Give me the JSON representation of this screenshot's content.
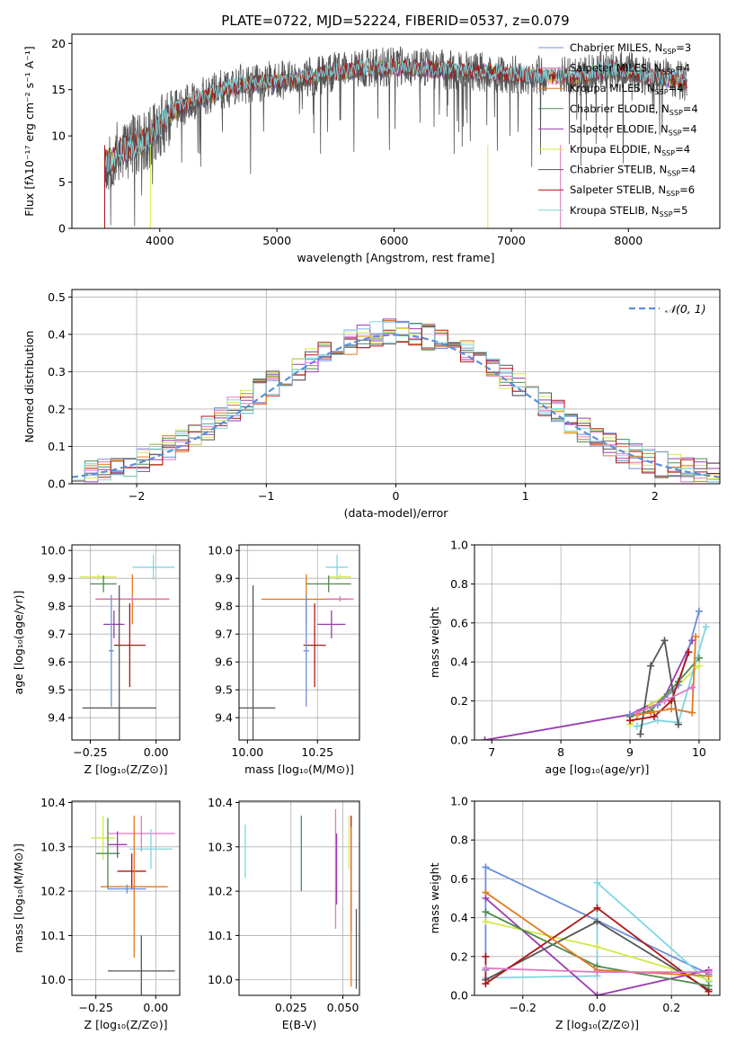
{
  "figure_title": "PLATE=0722, MJD=52224, FIBERID=0537, z=0.079",
  "colors": {
    "Chabrier MILES": "#6a8fdc",
    "Salpeter MILES": "#e377c2",
    "Kroupa MILES": "#e07a1f",
    "Chabrier ELODIE": "#4f8a4f",
    "Salpeter ELODIE": "#9a3bb0",
    "Kroupa ELODIE": "#d4e84a",
    "Chabrier STELIB": "#555555",
    "Salpeter STELIB": "#b01515",
    "Kroupa STELIB": "#7fd6e0",
    "normal_curve": "#5a8fd8",
    "grid": "#b0b0b0"
  },
  "chart_data": [
    {
      "id": "spectrum",
      "type": "line",
      "xlabel": "wavelength [Angstrom, rest frame]",
      "ylabel": "Flux [fλ10⁻¹⁷ erg cm⁻² s⁻¹ A⁻¹]",
      "xlim": [
        3250,
        8780
      ],
      "ylim": [
        0,
        21
      ],
      "xticks": [
        4000,
        5000,
        6000,
        7000,
        8000
      ],
      "yticks": [
        0,
        5,
        10,
        15,
        20
      ],
      "grid": false,
      "legend_position": "top-right",
      "legend": [
        {
          "name": "Chabrier MILES",
          "suffix": "=3"
        },
        {
          "name": "Salpeter MILES",
          "suffix": "=4"
        },
        {
          "name": "Kroupa MILES",
          "suffix": "=4"
        },
        {
          "name": "Chabrier ELODIE",
          "suffix": "=4"
        },
        {
          "name": "Salpeter ELODIE",
          "suffix": "=4"
        },
        {
          "name": "Kroupa ELODIE",
          "suffix": "=4"
        },
        {
          "name": "Chabrier STELIB",
          "suffix": "=4"
        },
        {
          "name": "Salpeter STELIB",
          "suffix": "=6"
        },
        {
          "name": "Kroupa STELIB",
          "suffix": "=5"
        }
      ],
      "legend_sub": "SSP",
      "legend_prefix": "N",
      "continuum_x": [
        3530,
        3700,
        3900,
        4000,
        4100,
        4300,
        4500,
        4700,
        4900,
        5100,
        5300,
        5500,
        5700,
        5900,
        6100,
        6300,
        6500,
        6700,
        6900,
        7100,
        7300,
        7400,
        7550,
        7700,
        7900,
        8100,
        8300,
        8500
      ],
      "continuum_y": [
        7.0,
        8.5,
        9.5,
        11.0,
        12.5,
        13.8,
        14.8,
        15.5,
        15.8,
        16.0,
        16.3,
        16.8,
        17.2,
        17.3,
        17.4,
        17.2,
        17.0,
        16.9,
        16.7,
        16.5,
        16.4,
        16.5,
        16.2,
        16.8,
        17.2,
        16.5,
        16.2,
        15.8
      ]
    },
    {
      "id": "residuals",
      "type": "histogram",
      "xlabel": "(data-model)/error",
      "ylabel": "Normed distribution",
      "xlim": [
        -2.5,
        2.5
      ],
      "ylim": [
        0,
        0.52
      ],
      "xticks": [
        -2,
        -1,
        0,
        1,
        2
      ],
      "yticks": [
        0.0,
        0.1,
        0.2,
        0.3,
        0.4,
        0.5
      ],
      "grid": true,
      "bin_width": 0.1,
      "legend": "𝒩(0, 1)",
      "legend_position": "top-right",
      "envelope_x": [
        -2.5,
        -2.2,
        -2.0,
        -1.8,
        -1.5,
        -1.2,
        -1.0,
        -0.8,
        -0.5,
        -0.2,
        0.0,
        0.2,
        0.5,
        0.8,
        1.0,
        1.2,
        1.5,
        1.8,
        2.0,
        2.2,
        2.5
      ],
      "envelope_y": [
        0.02,
        0.035,
        0.06,
        0.085,
        0.14,
        0.21,
        0.26,
        0.3,
        0.36,
        0.4,
        0.41,
        0.4,
        0.36,
        0.3,
        0.25,
        0.2,
        0.13,
        0.08,
        0.055,
        0.04,
        0.025
      ]
    },
    {
      "id": "age_vs_Z",
      "type": "errorbar",
      "xlabel": "Z [log₁₀(Z/Z⊙)]",
      "ylabel": "age  [log₁₀(age/yr)]",
      "xlim": [
        -0.32,
        0.09
      ],
      "ylim": [
        9.32,
        10.02
      ],
      "xticks": [
        -0.25,
        0.0
      ],
      "xticklabels": [
        "−0.25",
        "0.00"
      ],
      "yticks": [
        9.4,
        9.5,
        9.6,
        9.7,
        9.8,
        9.9,
        10.0
      ],
      "grid": true,
      "points": [
        {
          "model": "Kroupa STELIB",
          "x": -0.01,
          "xerr": 0.08,
          "y": 9.94,
          "yerr": 0.045
        },
        {
          "model": "Kroupa ELODIE",
          "x": -0.22,
          "xerr": 0.07,
          "y": 9.905,
          "yerr": 0.01
        },
        {
          "model": "Chabrier ELODIE",
          "x": -0.2,
          "xerr": 0.05,
          "y": 9.88,
          "yerr": 0.03
        },
        {
          "model": "Kroupa MILES",
          "x": -0.09,
          "xerr": 0.14,
          "y": 9.825,
          "yerr": 0.09
        },
        {
          "model": "Salpeter MILES",
          "x": -0.09,
          "xerr": 0.14,
          "y": 9.826,
          "yerr": 0.01
        },
        {
          "model": "Salpeter ELODIE",
          "x": -0.16,
          "xerr": 0.04,
          "y": 9.735,
          "yerr": 0.05
        },
        {
          "model": "Salpeter STELIB",
          "x": -0.1,
          "xerr": 0.06,
          "y": 9.66,
          "yerr": 0.15
        },
        {
          "model": "Chabrier MILES",
          "x": -0.17,
          "xerr": 0.01,
          "y": 9.64,
          "yerr": 0.2
        },
        {
          "model": "Chabrier STELIB",
          "x": -0.14,
          "xerr": 0.14,
          "y": 9.435,
          "yerr": 0.44
        }
      ]
    },
    {
      "id": "age_vs_mass",
      "type": "errorbar",
      "xlabel": "mass [log₁₀(M/M⊙)]",
      "ylabel": "",
      "xlim": [
        9.97,
        10.4
      ],
      "ylim": [
        9.32,
        10.02
      ],
      "xticks": [
        10.0,
        10.25
      ],
      "xticklabels": [
        "10.00",
        "10.25"
      ],
      "yticks": [
        9.4,
        9.5,
        9.6,
        9.7,
        9.8,
        9.9,
        10.0
      ],
      "grid": true,
      "points": [
        {
          "model": "Kroupa STELIB",
          "x": 10.32,
          "xerr": 0.04,
          "y": 9.94,
          "yerr": 0.045
        },
        {
          "model": "Kroupa ELODIE",
          "x": 10.33,
          "xerr": 0.04,
          "y": 9.905,
          "yerr": 0.01
        },
        {
          "model": "Chabrier ELODIE",
          "x": 10.29,
          "xerr": 0.08,
          "y": 9.88,
          "yerr": 0.03
        },
        {
          "model": "Kroupa MILES",
          "x": 10.21,
          "xerr": 0.16,
          "y": 9.825,
          "yerr": 0.09
        },
        {
          "model": "Salpeter MILES",
          "x": 10.33,
          "xerr": 0.05,
          "y": 9.826,
          "yerr": 0.01
        },
        {
          "model": "Salpeter ELODIE",
          "x": 10.3,
          "xerr": 0.05,
          "y": 9.735,
          "yerr": 0.05
        },
        {
          "model": "Salpeter STELIB",
          "x": 10.24,
          "xerr": 0.04,
          "y": 9.66,
          "yerr": 0.15
        },
        {
          "model": "Chabrier MILES",
          "x": 10.21,
          "xerr": 0.01,
          "y": 9.64,
          "yerr": 0.2
        },
        {
          "model": "Chabrier STELIB",
          "x": 10.02,
          "xerr": 0.08,
          "y": 9.435,
          "yerr": 0.44
        }
      ]
    },
    {
      "id": "weight_vs_age",
      "type": "line",
      "xlabel": "age  [log₁₀(age/yr)]",
      "ylabel": "mass weight",
      "xlim": [
        6.75,
        10.3
      ],
      "ylim": [
        0,
        1
      ],
      "xticks": [
        7,
        8,
        9,
        10
      ],
      "yticks": [
        0.0,
        0.2,
        0.4,
        0.6,
        0.8,
        1.0
      ],
      "grid": true,
      "series": [
        {
          "model": "Salpeter ELODIE",
          "x": [
            6.9,
            9.0,
            9.5,
            9.9
          ],
          "y": [
            0.0,
            0.13,
            0.22,
            0.51
          ]
        },
        {
          "model": "Kroupa ELODIE",
          "x": [
            9.0,
            9.3,
            9.6,
            10.0
          ],
          "y": [
            0.08,
            0.18,
            0.25,
            0.38
          ]
        },
        {
          "model": "Chabrier ELODIE",
          "x": [
            9.0,
            9.3,
            9.7,
            10.0
          ],
          "y": [
            0.12,
            0.15,
            0.3,
            0.42
          ]
        },
        {
          "model": "Chabrier MILES",
          "x": [
            9.0,
            9.4,
            9.7,
            10.0
          ],
          "y": [
            0.13,
            0.18,
            0.28,
            0.66
          ]
        },
        {
          "model": "Kroupa STELIB",
          "x": [
            9.1,
            9.4,
            9.7,
            10.1
          ],
          "y": [
            0.07,
            0.1,
            0.09,
            0.58
          ]
        },
        {
          "model": "Chabrier STELIB",
          "x": [
            9.15,
            9.3,
            9.5,
            9.7
          ],
          "y": [
            0.03,
            0.38,
            0.51,
            0.08
          ]
        },
        {
          "model": "Salpeter STELIB",
          "x": [
            9.0,
            9.35,
            9.6,
            9.85
          ],
          "y": [
            0.1,
            0.12,
            0.2,
            0.45
          ]
        },
        {
          "model": "Kroupa MILES",
          "x": [
            9.1,
            9.3,
            9.6,
            9.9,
            9.95
          ],
          "y": [
            0.13,
            0.14,
            0.16,
            0.14,
            0.53
          ]
        },
        {
          "model": "Salpeter MILES",
          "x": [
            9.1,
            9.5,
            9.9
          ],
          "y": [
            0.14,
            0.2,
            0.27
          ]
        }
      ]
    },
    {
      "id": "mass_vs_Z",
      "type": "errorbar",
      "xlabel": "Z [log₁₀(Z/Z⊙)]",
      "ylabel": "mass [log₁₀(M/M⊙)]",
      "xlim": [
        -0.35,
        0.1
      ],
      "ylim": [
        9.965,
        10.403
      ],
      "xticks": [
        -0.25,
        0.0
      ],
      "xticklabels": [
        "−0.25",
        "0.00"
      ],
      "yticks": [
        10.0,
        10.1,
        10.2,
        10.3,
        10.4
      ],
      "grid": true,
      "points": [
        {
          "model": "Salpeter MILES",
          "x": -0.06,
          "xerr": 0.14,
          "y": 10.33,
          "yerr": 0.04
        },
        {
          "model": "Kroupa ELODIE",
          "x": -0.22,
          "xerr": 0.05,
          "y": 10.32,
          "yerr": 0.05
        },
        {
          "model": "Salpeter ELODIE",
          "x": -0.16,
          "xerr": 0.04,
          "y": 10.305,
          "yerr": 0.03
        },
        {
          "model": "Kroupa STELIB",
          "x": -0.02,
          "xerr": 0.09,
          "y": 10.295,
          "yerr": 0.045
        },
        {
          "model": "Chabrier ELODIE",
          "x": -0.2,
          "xerr": 0.05,
          "y": 10.285,
          "yerr": 0.08
        },
        {
          "model": "Salpeter STELIB",
          "x": -0.1,
          "xerr": 0.06,
          "y": 10.245,
          "yerr": 0.04
        },
        {
          "model": "Kroupa MILES",
          "x": -0.09,
          "xerr": 0.14,
          "y": 10.21,
          "yerr": 0.16
        },
        {
          "model": "Chabrier MILES",
          "x": -0.12,
          "xerr": 0.08,
          "y": 10.205,
          "yerr": 0.01
        },
        {
          "model": "Chabrier STELIB",
          "x": -0.06,
          "xerr": 0.14,
          "y": 10.02,
          "yerr": 0.08
        }
      ]
    },
    {
      "id": "mass_vs_EBV",
      "type": "errorbar",
      "xlabel": "E(B-V)",
      "ylabel": "",
      "xlim": [
        0.0,
        0.058
      ],
      "ylim": [
        9.965,
        10.403
      ],
      "xticks": [
        0.025,
        0.05
      ],
      "xticklabels": [
        "0.025",
        "0.050"
      ],
      "yticks": [
        10.0,
        10.1,
        10.2,
        10.3,
        10.4
      ],
      "grid": true,
      "points": [
        {
          "model": "Kroupa STELIB",
          "x": 0.003,
          "xerr": 0.0,
          "y": 10.29,
          "yerr": 0.06
        },
        {
          "model": "Chabrier ELODIE",
          "x": 0.03,
          "xerr": 0.0,
          "y": 10.285,
          "yerr": 0.085
        },
        {
          "model": "Salpeter MILES",
          "x": 0.0465,
          "xerr": 0.0,
          "y": 10.25,
          "yerr": 0.135
        },
        {
          "model": "Salpeter ELODIE",
          "x": 0.047,
          "xerr": 0.0,
          "y": 10.25,
          "yerr": 0.08
        },
        {
          "model": "Kroupa ELODIE",
          "x": 0.053,
          "xerr": 0.0,
          "y": 10.31,
          "yerr": 0.06
        },
        {
          "model": "Salpeter STELIB",
          "x": 0.054,
          "xerr": 0.0,
          "y": 10.24,
          "yerr": 0.13
        },
        {
          "model": "Kroupa MILES",
          "x": 0.054,
          "xerr": 0.0,
          "y": 10.165,
          "yerr": 0.18
        },
        {
          "model": "Chabrier STELIB",
          "x": 0.0565,
          "xerr": 0.0,
          "y": 10.07,
          "yerr": 0.09
        }
      ]
    },
    {
      "id": "weight_vs_Z",
      "type": "line",
      "xlabel": "Z [log₁₀(Z/Z⊙)]",
      "ylabel": "mass weight",
      "xlim": [
        -0.33,
        0.33
      ],
      "ylim": [
        0,
        1
      ],
      "xticks": [
        -0.2,
        0.0,
        0.2
      ],
      "xticklabels": [
        "−0.2",
        "0.0",
        "0.2"
      ],
      "yticks": [
        0.0,
        0.2,
        0.4,
        0.6,
        0.8,
        1.0
      ],
      "grid": true,
      "series": [
        {
          "model": "Chabrier MILES",
          "x": [
            -0.3,
            -0.3,
            0.3,
            0.3
          ],
          "y": [
            0.13,
            0.66,
            0.11,
            0.1
          ]
        },
        {
          "model": "Kroupa STELIB",
          "x": [
            -0.3,
            0.0,
            0.0,
            0.3
          ],
          "y": [
            0.09,
            0.1,
            0.58,
            0.07
          ]
        },
        {
          "model": "Kroupa ELODIE",
          "x": [
            -0.3,
            0.0,
            0.3
          ],
          "y": [
            0.38,
            0.25,
            0.08
          ]
        },
        {
          "model": "Salpeter ELODIE",
          "x": [
            -0.3,
            0.0,
            0.3
          ],
          "y": [
            0.5,
            0.0,
            0.13
          ]
        },
        {
          "model": "Chabrier STELIB",
          "x": [
            -0.3,
            0.0,
            0.3
          ],
          "y": [
            0.08,
            0.38,
            0.03
          ]
        },
        {
          "model": "Salpeter STELIB",
          "x": [
            -0.3,
            -0.3,
            0.0,
            0.3
          ],
          "y": [
            0.2,
            0.06,
            0.45,
            0.02
          ]
        },
        {
          "model": "Chabrier ELODIE",
          "x": [
            -0.3,
            0.0,
            0.3
          ],
          "y": [
            0.43,
            0.15,
            0.05
          ]
        },
        {
          "model": "Kroupa MILES",
          "x": [
            -0.3,
            0.0,
            0.3
          ],
          "y": [
            0.53,
            0.13,
            0.1
          ]
        },
        {
          "model": "Salpeter MILES",
          "x": [
            -0.3,
            0.0,
            0.3
          ],
          "y": [
            0.14,
            0.12,
            0.12
          ]
        }
      ]
    }
  ]
}
